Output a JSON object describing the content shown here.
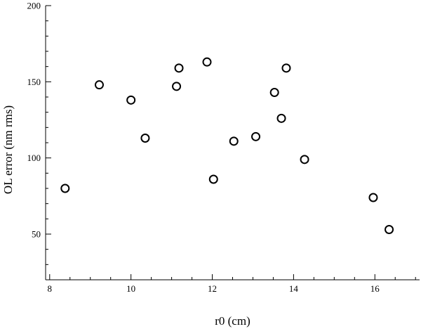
{
  "chart_data": {
    "type": "scatter",
    "xlabel": "r0 (cm)",
    "ylabel": "OL error (nm rms)",
    "xlim": [
      7.9,
      17.1
    ],
    "ylim": [
      20,
      200
    ],
    "x_ticks": [
      8,
      10,
      12,
      14,
      16
    ],
    "y_ticks": [
      50,
      100,
      150,
      200
    ],
    "x_tick_labels": [
      "8",
      "10",
      "12",
      "14",
      "16"
    ],
    "y_tick_labels": [
      "50",
      "100",
      "150",
      "200"
    ],
    "grid": false,
    "legend": "none",
    "marker": "open-circle",
    "series": [
      {
        "points": [
          {
            "x": 8.38,
            "y": 80
          },
          {
            "x": 9.22,
            "y": 148
          },
          {
            "x": 10.0,
            "y": 138
          },
          {
            "x": 10.35,
            "y": 113
          },
          {
            "x": 11.12,
            "y": 147
          },
          {
            "x": 11.18,
            "y": 159
          },
          {
            "x": 11.87,
            "y": 163
          },
          {
            "x": 12.03,
            "y": 86
          },
          {
            "x": 12.53,
            "y": 111
          },
          {
            "x": 13.07,
            "y": 114
          },
          {
            "x": 13.53,
            "y": 143
          },
          {
            "x": 13.7,
            "y": 126
          },
          {
            "x": 13.82,
            "y": 159
          },
          {
            "x": 14.27,
            "y": 99
          },
          {
            "x": 15.96,
            "y": 74
          },
          {
            "x": 16.35,
            "y": 53
          }
        ]
      }
    ]
  }
}
